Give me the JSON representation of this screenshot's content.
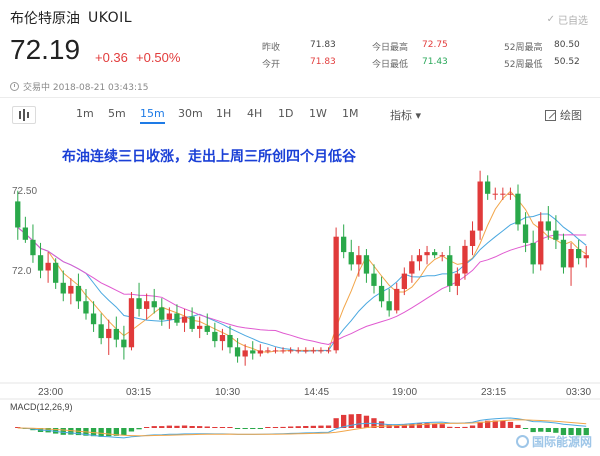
{
  "header": {
    "name": "布伦特原油",
    "code": "UKOIL",
    "fav_label": "已自选"
  },
  "quote": {
    "price": "72.19",
    "change": "+0.36",
    "change_pct": "+0.50%",
    "status": "交易中 2018-08-21 03:43:15"
  },
  "stats": {
    "col1": [
      {
        "label": "昨收",
        "value": "71.83"
      },
      {
        "label": "今开",
        "value": "71.83"
      }
    ],
    "col2": [
      {
        "label": "今日最高",
        "value": "72.75"
      },
      {
        "label": "今日最低",
        "value": "71.43"
      }
    ],
    "col3": [
      {
        "label": "52周最高",
        "value": "80.50"
      },
      {
        "label": "52周最低",
        "value": "50.52"
      }
    ]
  },
  "toolbar": {
    "timeframes": [
      "1m",
      "5m",
      "15m",
      "30m",
      "1H",
      "4H",
      "1D",
      "1W",
      "1M"
    ],
    "active_timeframe": "15m",
    "indicator_label": "指标",
    "draw_label": "绘图"
  },
  "chart": {
    "headline": "布油连续三日收涨，走出上周三所创四个月低谷",
    "y_ticks": [
      "72.50",
      "72.0"
    ],
    "x_ticks": [
      "23:00",
      "03:15",
      "10:30",
      "14:45",
      "19:00",
      "23:15",
      "03:30"
    ],
    "macd_label": "MACD(12,26,9)",
    "up_color": "#e03a3a",
    "down_color": "#2aa84a",
    "ma_colors": [
      "#f2a64a",
      "#4aa8e0",
      "#e05ad0"
    ],
    "watermark": "国际能源网"
  },
  "chart_data": {
    "type": "candlestick",
    "ylim": [
      71.4,
      72.95
    ],
    "x_ticks": [
      "23:00",
      "03:15",
      "10:30",
      "14:45",
      "19:00",
      "23:15",
      "03:30"
    ],
    "candles": [
      [
        72.55,
        72.62,
        72.3,
        72.38
      ],
      [
        72.38,
        72.45,
        72.28,
        72.3
      ],
      [
        72.3,
        72.4,
        72.15,
        72.2
      ],
      [
        72.2,
        72.28,
        72.05,
        72.1
      ],
      [
        72.1,
        72.22,
        72.02,
        72.15
      ],
      [
        72.15,
        72.18,
        71.98,
        72.02
      ],
      [
        72.02,
        72.1,
        71.9,
        71.95
      ],
      [
        71.95,
        72.05,
        71.88,
        72.0
      ],
      [
        72.0,
        72.08,
        71.85,
        71.9
      ],
      [
        71.9,
        71.98,
        71.78,
        71.82
      ],
      [
        71.82,
        71.9,
        71.7,
        71.75
      ],
      [
        71.75,
        71.82,
        71.62,
        71.66
      ],
      [
        71.66,
        71.78,
        71.55,
        71.72
      ],
      [
        71.72,
        71.8,
        71.6,
        71.65
      ],
      [
        71.65,
        71.74,
        71.52,
        71.6
      ],
      [
        71.6,
        71.96,
        71.58,
        71.92
      ],
      [
        71.92,
        72.02,
        71.8,
        71.85
      ],
      [
        71.85,
        71.95,
        71.78,
        71.9
      ],
      [
        71.9,
        71.98,
        71.82,
        71.86
      ],
      [
        71.86,
        71.92,
        71.74,
        71.78
      ],
      [
        71.78,
        71.86,
        71.72,
        71.82
      ],
      [
        71.82,
        71.88,
        71.74,
        71.76
      ],
      [
        71.76,
        71.85,
        71.7,
        71.8
      ],
      [
        71.8,
        71.86,
        71.7,
        71.72
      ],
      [
        71.72,
        71.8,
        71.66,
        71.74
      ],
      [
        71.74,
        71.82,
        71.68,
        71.7
      ],
      [
        71.7,
        71.76,
        71.6,
        71.64
      ],
      [
        71.64,
        71.72,
        71.58,
        71.68
      ],
      [
        71.68,
        71.74,
        71.56,
        71.6
      ],
      [
        71.6,
        71.66,
        71.5,
        71.54
      ],
      [
        71.54,
        71.62,
        71.48,
        71.58
      ],
      [
        71.58,
        71.64,
        71.52,
        71.56
      ],
      [
        71.56,
        71.62,
        71.54,
        71.58
      ],
      [
        71.58,
        71.6,
        71.56,
        71.58
      ],
      [
        71.58,
        71.6,
        71.56,
        71.58
      ],
      [
        71.58,
        71.6,
        71.56,
        71.58
      ],
      [
        71.58,
        71.6,
        71.56,
        71.58
      ],
      [
        71.58,
        71.6,
        71.56,
        71.58
      ],
      [
        71.58,
        71.6,
        71.56,
        71.58
      ],
      [
        71.58,
        71.6,
        71.56,
        71.58
      ],
      [
        71.58,
        71.6,
        71.56,
        71.58
      ],
      [
        71.58,
        71.6,
        71.56,
        71.58
      ],
      [
        71.58,
        72.38,
        71.56,
        72.32
      ],
      [
        72.32,
        72.4,
        72.18,
        72.22
      ],
      [
        72.22,
        72.3,
        72.1,
        72.14
      ],
      [
        72.14,
        72.26,
        72.06,
        72.2
      ],
      [
        72.2,
        72.24,
        72.02,
        72.08
      ],
      [
        72.08,
        72.14,
        71.95,
        72.0
      ],
      [
        72.0,
        72.06,
        71.86,
        71.9
      ],
      [
        71.9,
        71.98,
        71.8,
        71.84
      ],
      [
        71.84,
        72.02,
        71.82,
        71.98
      ],
      [
        71.98,
        72.12,
        71.94,
        72.08
      ],
      [
        72.08,
        72.2,
        72.02,
        72.16
      ],
      [
        72.16,
        72.24,
        72.1,
        72.2
      ],
      [
        72.2,
        72.26,
        72.14,
        72.22
      ],
      [
        72.22,
        72.24,
        72.18,
        72.2
      ],
      [
        72.2,
        72.22,
        72.16,
        72.2
      ],
      [
        72.2,
        72.26,
        71.96,
        72.0
      ],
      [
        72.0,
        72.12,
        71.94,
        72.08
      ],
      [
        72.08,
        72.3,
        72.04,
        72.26
      ],
      [
        72.26,
        72.42,
        72.2,
        72.36
      ],
      [
        72.36,
        72.75,
        72.3,
        72.68
      ],
      [
        72.68,
        72.72,
        72.56,
        72.6
      ],
      [
        72.6,
        72.64,
        72.56,
        72.6
      ],
      [
        72.6,
        72.64,
        72.56,
        72.6
      ],
      [
        72.6,
        72.64,
        72.56,
        72.6
      ],
      [
        72.6,
        72.66,
        72.36,
        72.4
      ],
      [
        72.4,
        72.48,
        72.22,
        72.28
      ],
      [
        72.28,
        72.36,
        72.08,
        72.14
      ],
      [
        72.14,
        72.48,
        72.1,
        72.42
      ],
      [
        72.42,
        72.52,
        72.3,
        72.36
      ],
      [
        72.36,
        72.46,
        72.24,
        72.3
      ],
      [
        72.3,
        72.34,
        72.08,
        72.12
      ],
      [
        72.12,
        72.28,
        72.0,
        72.24
      ],
      [
        72.24,
        72.3,
        72.14,
        72.18
      ],
      [
        72.18,
        72.26,
        72.12,
        72.2
      ]
    ]
  }
}
